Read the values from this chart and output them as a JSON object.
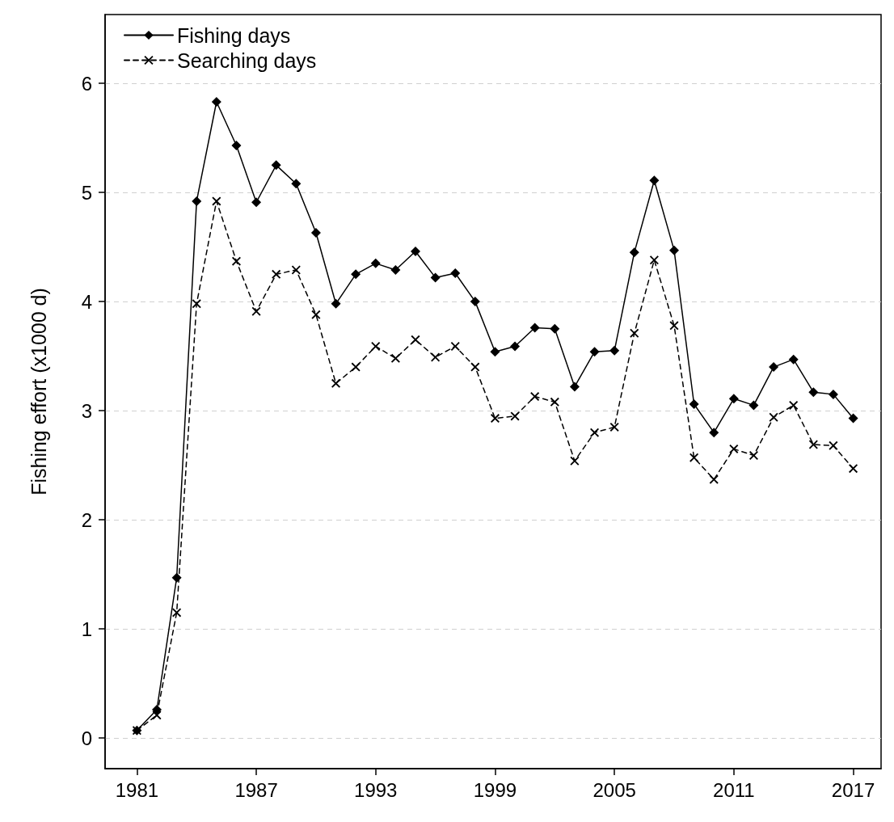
{
  "chart_data": {
    "type": "line",
    "ylabel": "Fishing effort (x1000 d)",
    "x": [
      1981,
      1982,
      1983,
      1984,
      1985,
      1986,
      1987,
      1988,
      1989,
      1990,
      1991,
      1992,
      1993,
      1994,
      1995,
      1996,
      1997,
      1998,
      1999,
      2000,
      2001,
      2002,
      2003,
      2004,
      2005,
      2006,
      2007,
      2008,
      2009,
      2010,
      2011,
      2012,
      2013,
      2014,
      2015,
      2016,
      2017
    ],
    "series": [
      {
        "name": "Fishing days",
        "color": "#000000",
        "marker": "diamond",
        "line_style": "solid",
        "values": [
          0.07,
          0.26,
          1.47,
          4.92,
          5.83,
          5.43,
          4.91,
          5.25,
          5.08,
          4.63,
          3.98,
          4.25,
          4.35,
          4.29,
          4.46,
          4.22,
          4.26,
          4.0,
          3.54,
          3.59,
          3.76,
          3.75,
          3.22,
          3.54,
          3.55,
          4.45,
          5.11,
          4.47,
          3.06,
          2.8,
          3.11,
          3.05,
          3.4,
          3.47,
          3.17,
          3.15,
          2.93
        ]
      },
      {
        "name": "Searching days",
        "color": "#000000",
        "marker": "cross",
        "line_style": "dashed",
        "values": [
          0.07,
          0.21,
          1.15,
          3.98,
          4.92,
          4.37,
          3.91,
          4.25,
          4.29,
          3.88,
          3.25,
          3.4,
          3.59,
          3.48,
          3.65,
          3.49,
          3.59,
          3.4,
          2.93,
          2.95,
          3.13,
          3.08,
          2.54,
          2.8,
          2.85,
          3.71,
          4.38,
          3.78,
          2.57,
          2.37,
          2.65,
          2.59,
          2.94,
          3.05,
          2.69,
          2.68,
          2.47
        ]
      }
    ],
    "xlim": [
      1979.4,
      2018.4
    ],
    "xticks": [
      1981,
      1987,
      1993,
      1999,
      2005,
      2011,
      2017
    ],
    "ylim": [
      -0.28,
      6.63
    ],
    "yticks": [
      0,
      1,
      2,
      3,
      4,
      5,
      6
    ],
    "grid": "y",
    "legend": "top left"
  }
}
